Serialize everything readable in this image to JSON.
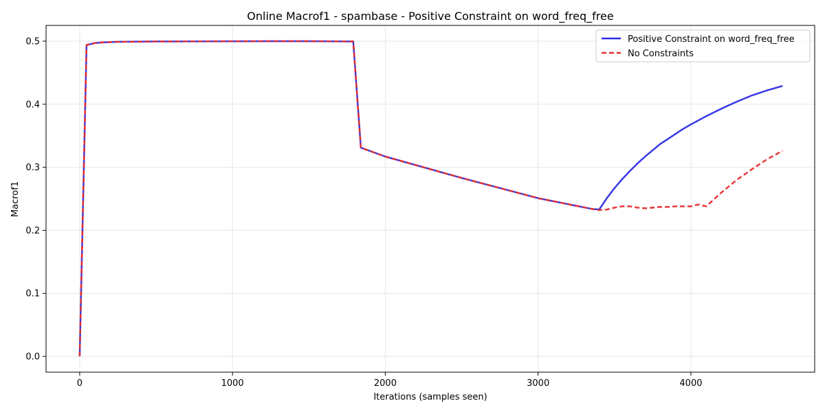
{
  "chart_data": {
    "type": "line",
    "title": "Online Macrof1 - spambase - Positive Constraint on word_freq_free",
    "xlabel": "Iterations (samples seen)",
    "ylabel": "Macrof1",
    "xlim": [
      -220,
      4810
    ],
    "ylim": [
      -0.025,
      0.525
    ],
    "xticks": [
      0,
      1000,
      2000,
      3000,
      4000
    ],
    "yticks": [
      0.0,
      0.1,
      0.2,
      0.3,
      0.4,
      0.5
    ],
    "xtick_labels": [
      "0",
      "1000",
      "2000",
      "3000",
      "4000"
    ],
    "ytick_labels": [
      "0.0",
      "0.1",
      "0.2",
      "0.3",
      "0.4",
      "0.5"
    ],
    "grid": true,
    "legend_position": "top-right",
    "series": [
      {
        "name": "Positive Constraint on word_freq_free",
        "color": "#2d2de6",
        "style": "solid",
        "x": [
          0,
          45,
          100,
          150,
          250,
          500,
          1000,
          1500,
          1790,
          1840,
          2000,
          2500,
          3000,
          3350,
          3400,
          3450,
          3500,
          3550,
          3600,
          3650,
          3700,
          3750,
          3800,
          3850,
          3900,
          3950,
          4000,
          4100,
          4200,
          4300,
          4400,
          4500,
          4600
        ],
        "y": [
          0.0,
          0.494,
          0.497,
          0.498,
          0.499,
          0.4995,
          0.4998,
          0.4999,
          0.4995,
          0.331,
          0.317,
          0.283,
          0.251,
          0.234,
          0.233,
          0.251,
          0.267,
          0.281,
          0.294,
          0.306,
          0.317,
          0.327,
          0.337,
          0.345,
          0.353,
          0.361,
          0.368,
          0.381,
          0.393,
          0.404,
          0.414,
          0.422,
          0.429
        ]
      },
      {
        "name": "No Constraints",
        "color": "#e62d2d",
        "style": "dashed",
        "x": [
          0,
          45,
          100,
          150,
          250,
          500,
          1000,
          1500,
          1790,
          1840,
          2000,
          2500,
          3000,
          3350,
          3400,
          3450,
          3500,
          3550,
          3600,
          3650,
          3700,
          3750,
          3800,
          3850,
          3900,
          3950,
          4000,
          4050,
          4100,
          4200,
          4300,
          4400,
          4500,
          4600
        ],
        "y": [
          0.0,
          0.494,
          0.497,
          0.498,
          0.499,
          0.4995,
          0.4998,
          0.4999,
          0.4995,
          0.331,
          0.317,
          0.283,
          0.251,
          0.234,
          0.232,
          0.233,
          0.236,
          0.238,
          0.238,
          0.236,
          0.235,
          0.236,
          0.237,
          0.237,
          0.238,
          0.238,
          0.238,
          0.241,
          0.238,
          0.26,
          0.28,
          0.297,
          0.313,
          0.326
        ]
      }
    ]
  }
}
